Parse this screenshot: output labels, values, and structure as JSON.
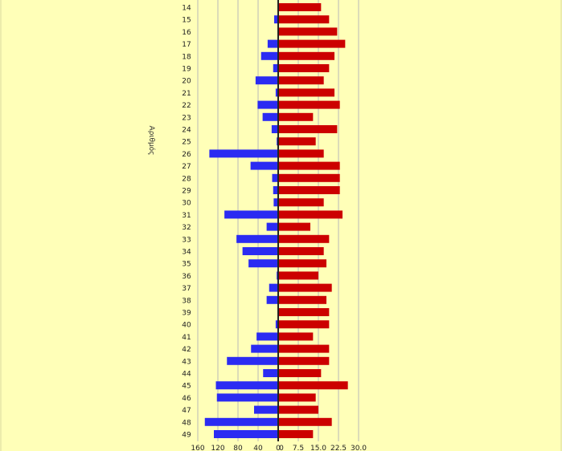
{
  "chart_data": {
    "type": "bar",
    "orientation": "horizontal-diverging",
    "title": "",
    "ylabel": "Αριθμός",
    "categories": [
      "14",
      "15",
      "16",
      "17",
      "18",
      "19",
      "20",
      "21",
      "22",
      "23",
      "24",
      "25",
      "26",
      "27",
      "28",
      "29",
      "30",
      "31",
      "32",
      "33",
      "34",
      "35",
      "36",
      "37",
      "38",
      "39",
      "40",
      "41",
      "42",
      "43",
      "44",
      "45",
      "46",
      "47",
      "48",
      "49"
    ],
    "series": [
      {
        "name": "left",
        "color": "#2b2bf2",
        "xlim": [
          0,
          160
        ],
        "ticks": [
          "160",
          "120",
          "80",
          "40",
          "0"
        ],
        "values": [
          0,
          8,
          1,
          21,
          34,
          10,
          45,
          5,
          41,
          31,
          13,
          3,
          137,
          55,
          12,
          10,
          9,
          107,
          23,
          83,
          71,
          59,
          3,
          18,
          23,
          1,
          5,
          43,
          54,
          102,
          30,
          124,
          122,
          48,
          146,
          128
        ]
      },
      {
        "name": "right",
        "color": "#cc0000",
        "xlim": [
          0,
          30
        ],
        "ticks": [
          "0",
          "7.5",
          "15.0",
          "22.5",
          "30.0"
        ],
        "values": [
          16,
          19,
          22,
          25,
          21,
          19,
          17,
          21,
          23,
          13,
          22,
          14,
          17,
          23,
          23,
          23,
          17,
          24,
          12,
          19,
          17,
          18,
          15,
          20,
          18,
          19,
          19,
          13,
          19,
          19,
          16,
          26,
          14,
          15,
          20,
          13
        ]
      }
    ]
  }
}
